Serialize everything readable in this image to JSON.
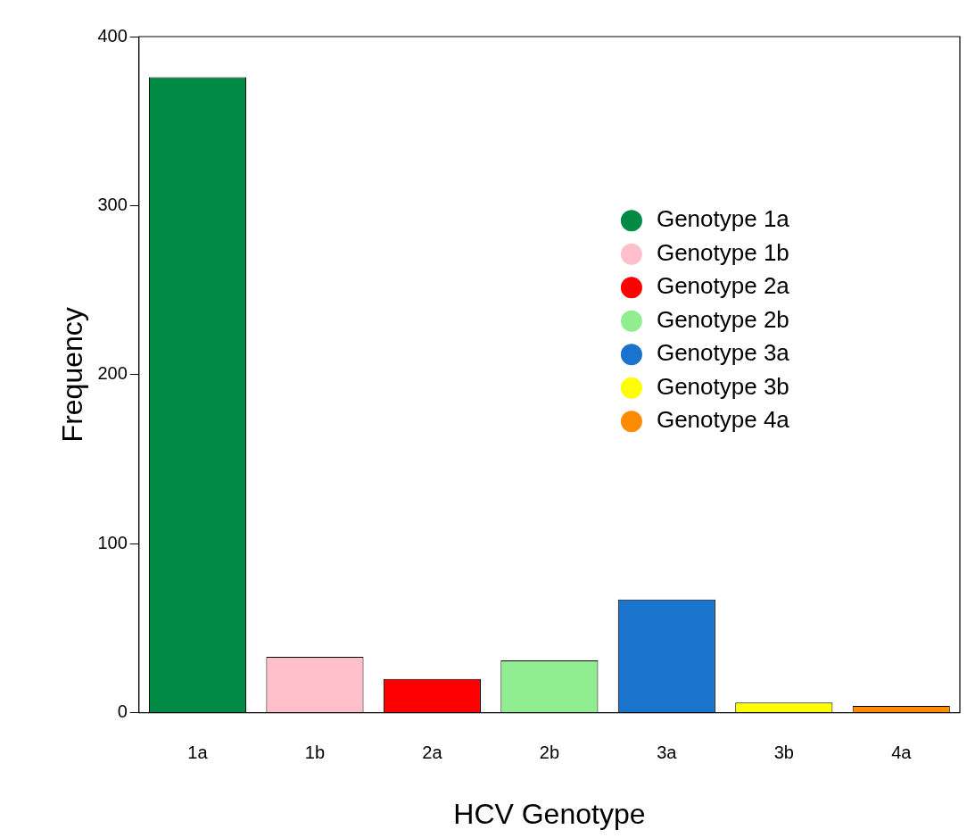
{
  "chart_data": {
    "type": "bar",
    "categories": [
      "1a",
      "1b",
      "2a",
      "2b",
      "3a",
      "3b",
      "4a"
    ],
    "series": [
      {
        "name": "Genotype 1a",
        "color": "#008a44",
        "values": [
          376,
          null,
          null,
          null,
          null,
          null,
          null
        ]
      },
      {
        "name": "Genotype 1b",
        "color": "#ffc0cb",
        "values": [
          null,
          33,
          null,
          null,
          null,
          null,
          null
        ]
      },
      {
        "name": "Genotype 2a",
        "color": "#ff0000",
        "values": [
          null,
          null,
          20,
          null,
          null,
          null,
          null
        ]
      },
      {
        "name": "Genotype 2b",
        "color": "#90ee90",
        "values": [
          null,
          null,
          null,
          31,
          null,
          null,
          null
        ]
      },
      {
        "name": "Genotype 3a",
        "color": "#1a73cc",
        "values": [
          null,
          null,
          null,
          null,
          67,
          null,
          null
        ]
      },
      {
        "name": "Genotype 3b",
        "color": "#ffff00",
        "values": [
          null,
          null,
          null,
          null,
          null,
          6,
          null
        ]
      },
      {
        "name": "Genotype 4a",
        "color": "#ff8c00",
        "values": [
          null,
          null,
          null,
          null,
          null,
          null,
          4
        ]
      }
    ],
    "xlabel": "HCV Genotype",
    "ylabel": "Frequency",
    "ylim": [
      0,
      400
    ],
    "yticks": [
      0,
      100,
      200,
      300,
      400
    ],
    "grid": false,
    "legend": "right",
    "marker": "circle"
  }
}
